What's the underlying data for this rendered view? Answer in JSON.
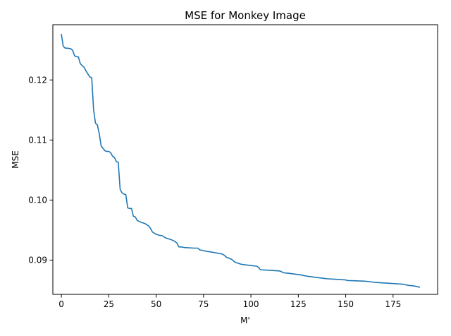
{
  "chart_data": {
    "type": "line",
    "title": "MSE for Monkey Image",
    "xlabel": "M'",
    "ylabel": "MSE",
    "xlim": [
      -4.5,
      198.5
    ],
    "ylim": [
      0.0843,
      0.1292
    ],
    "xticks": [
      0,
      25,
      50,
      75,
      100,
      125,
      150,
      175
    ],
    "xtick_labels": [
      "0",
      "25",
      "50",
      "75",
      "100",
      "125",
      "150",
      "175"
    ],
    "yticks": [
      0.09,
      0.1,
      0.11,
      0.12
    ],
    "ytick_labels": [
      "0.09",
      "0.10",
      "0.11",
      "0.12"
    ],
    "grid": false,
    "series": [
      {
        "color": "#1f77b4",
        "x": [
          0,
          1,
          2,
          3,
          5,
          6,
          7,
          9,
          10,
          12,
          13,
          14,
          15,
          16,
          17,
          18,
          19,
          20,
          21,
          23,
          24,
          25,
          26,
          27,
          28,
          29,
          30,
          31,
          32,
          33,
          34,
          35,
          36,
          37,
          38,
          39,
          40,
          42,
          43,
          44,
          45,
          46,
          47,
          48,
          50,
          52,
          53,
          55,
          56,
          58,
          60,
          61,
          62,
          63,
          65,
          70,
          72,
          73,
          75,
          76,
          80,
          85,
          86,
          87,
          90,
          91,
          92,
          95,
          100,
          103,
          104,
          105,
          110,
          115,
          116,
          117,
          120,
          125,
          127,
          130,
          135,
          140,
          145,
          150,
          151,
          160,
          163,
          165,
          170,
          175,
          180,
          183,
          186,
          189
        ],
        "y": [
          0.1276,
          0.1256,
          0.1253,
          0.1253,
          0.1252,
          0.1249,
          0.124,
          0.1238,
          0.1227,
          0.1221,
          0.1215,
          0.121,
          0.1205,
          0.1204,
          0.115,
          0.1128,
          0.1125,
          0.111,
          0.109,
          0.1082,
          0.1081,
          0.1081,
          0.1079,
          0.1073,
          0.1071,
          0.1064,
          0.1063,
          0.1018,
          0.1012,
          0.101,
          0.1009,
          0.0987,
          0.0986,
          0.0986,
          0.0973,
          0.0972,
          0.0966,
          0.0963,
          0.0962,
          0.0961,
          0.0959,
          0.0957,
          0.0953,
          0.0947,
          0.0943,
          0.0941,
          0.0941,
          0.0937,
          0.0936,
          0.0934,
          0.0931,
          0.0928,
          0.0922,
          0.0922,
          0.0921,
          0.092,
          0.092,
          0.0917,
          0.0916,
          0.0915,
          0.0913,
          0.091,
          0.0908,
          0.0905,
          0.0901,
          0.0898,
          0.0896,
          0.0893,
          0.0891,
          0.089,
          0.0888,
          0.0884,
          0.0883,
          0.0882,
          0.0881,
          0.0879,
          0.0878,
          0.0876,
          0.0875,
          0.0873,
          0.0871,
          0.0869,
          0.0868,
          0.0867,
          0.0866,
          0.0865,
          0.0864,
          0.0863,
          0.0862,
          0.0861,
          0.086,
          0.0858,
          0.0857,
          0.0855
        ]
      }
    ]
  }
}
